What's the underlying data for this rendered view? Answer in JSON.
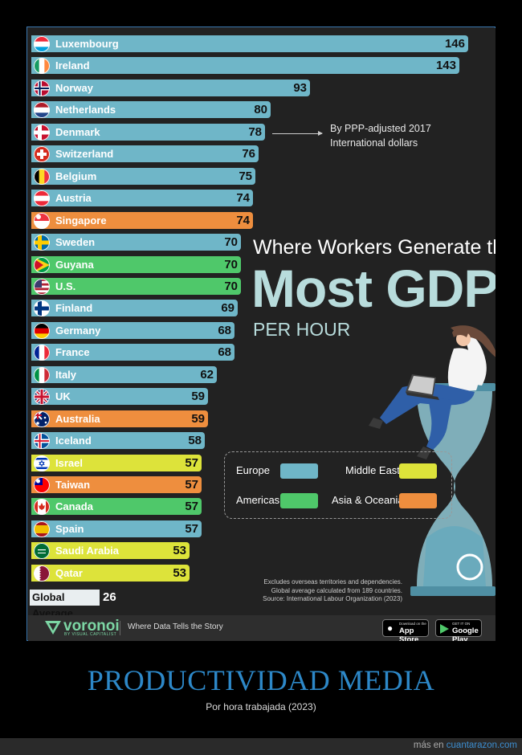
{
  "chart_data": {
    "type": "bar",
    "orientation": "horizontal",
    "title": "Where Workers Generate the Most GDP PER HOUR",
    "title_parts": [
      "Where Workers Generate the",
      "Most GDP",
      "PER HOUR"
    ],
    "note_lines": [
      "By PPP-adjusted 2017",
      "International dollars"
    ],
    "bars": [
      {
        "label": "Luxembourg",
        "value": 146,
        "region": "Europe",
        "flag": "lu"
      },
      {
        "label": "Ireland",
        "value": 143,
        "region": "Europe",
        "flag": "ie"
      },
      {
        "label": "Norway",
        "value": 93,
        "region": "Europe",
        "flag": "no"
      },
      {
        "label": "Netherlands",
        "value": 80,
        "region": "Europe",
        "flag": "nl"
      },
      {
        "label": "Denmark",
        "value": 78,
        "region": "Europe",
        "flag": "dk"
      },
      {
        "label": "Switzerland",
        "value": 76,
        "region": "Europe",
        "flag": "ch"
      },
      {
        "label": "Belgium",
        "value": 75,
        "region": "Europe",
        "flag": "be"
      },
      {
        "label": "Austria",
        "value": 74,
        "region": "Europe",
        "flag": "at"
      },
      {
        "label": "Singapore",
        "value": 74,
        "region": "Asia & Oceania",
        "flag": "sg"
      },
      {
        "label": "Sweden",
        "value": 70,
        "region": "Europe",
        "flag": "se"
      },
      {
        "label": "Guyana",
        "value": 70,
        "region": "Americas",
        "flag": "gy"
      },
      {
        "label": "U.S.",
        "value": 70,
        "region": "Americas",
        "flag": "us"
      },
      {
        "label": "Finland",
        "value": 69,
        "region": "Europe",
        "flag": "fi"
      },
      {
        "label": "Germany",
        "value": 68,
        "region": "Europe",
        "flag": "de"
      },
      {
        "label": "France",
        "value": 68,
        "region": "Europe",
        "flag": "fr"
      },
      {
        "label": "Italy",
        "value": 62,
        "region": "Europe",
        "flag": "it"
      },
      {
        "label": "UK",
        "value": 59,
        "region": "Europe",
        "flag": "uk"
      },
      {
        "label": "Australia",
        "value": 59,
        "region": "Asia & Oceania",
        "flag": "au"
      },
      {
        "label": "Iceland",
        "value": 58,
        "region": "Europe",
        "flag": "is"
      },
      {
        "label": "Israel",
        "value": 57,
        "region": "Middle East",
        "flag": "il"
      },
      {
        "label": "Taiwan",
        "value": 57,
        "region": "Asia & Oceania",
        "flag": "tw"
      },
      {
        "label": "Canada",
        "value": 57,
        "region": "Americas",
        "flag": "ca"
      },
      {
        "label": "Spain",
        "value": 57,
        "region": "Europe",
        "flag": "es"
      },
      {
        "label": "Saudi Arabia",
        "value": 53,
        "region": "Middle East",
        "flag": "sa"
      },
      {
        "label": "Qatar",
        "value": 53,
        "region": "Middle East",
        "flag": "qa"
      }
    ],
    "global_average": {
      "label": "Global Average",
      "value": 26
    },
    "legend": [
      {
        "name": "Europe",
        "color": "#6fb6c8"
      },
      {
        "name": "Middle East",
        "color": "#dde33a"
      },
      {
        "name": "Americas",
        "color": "#4fc86a"
      },
      {
        "name": "Asia & Oceania",
        "color": "#ee8e3e"
      }
    ],
    "region_colors": {
      "Europe": "#6fb6c8",
      "Americas": "#4fc86a",
      "Middle East": "#dde33a",
      "Asia & Oceania": "#ee8e3e"
    },
    "footnotes": [
      "Excludes overseas territories and dependencies.",
      "Global average calculated from 189 countries.",
      "Source: International Labour Organization (2023)"
    ]
  },
  "footer": {
    "brand": "voronoi",
    "brand_sub": "BY VISUAL CAPITALIST",
    "tagline": "Where Data Tells the Story",
    "app_store_small": "Download on the",
    "app_store": "App Store",
    "google_play_small": "GET IT ON",
    "google_play": "Google Play"
  },
  "caption": {
    "title": "PRODUCTIVIDAD MEDIA",
    "subtitle": "Por hora trabajada (2023)"
  },
  "site": {
    "prefix": "más en ",
    "link": "cuantarazon.com"
  }
}
